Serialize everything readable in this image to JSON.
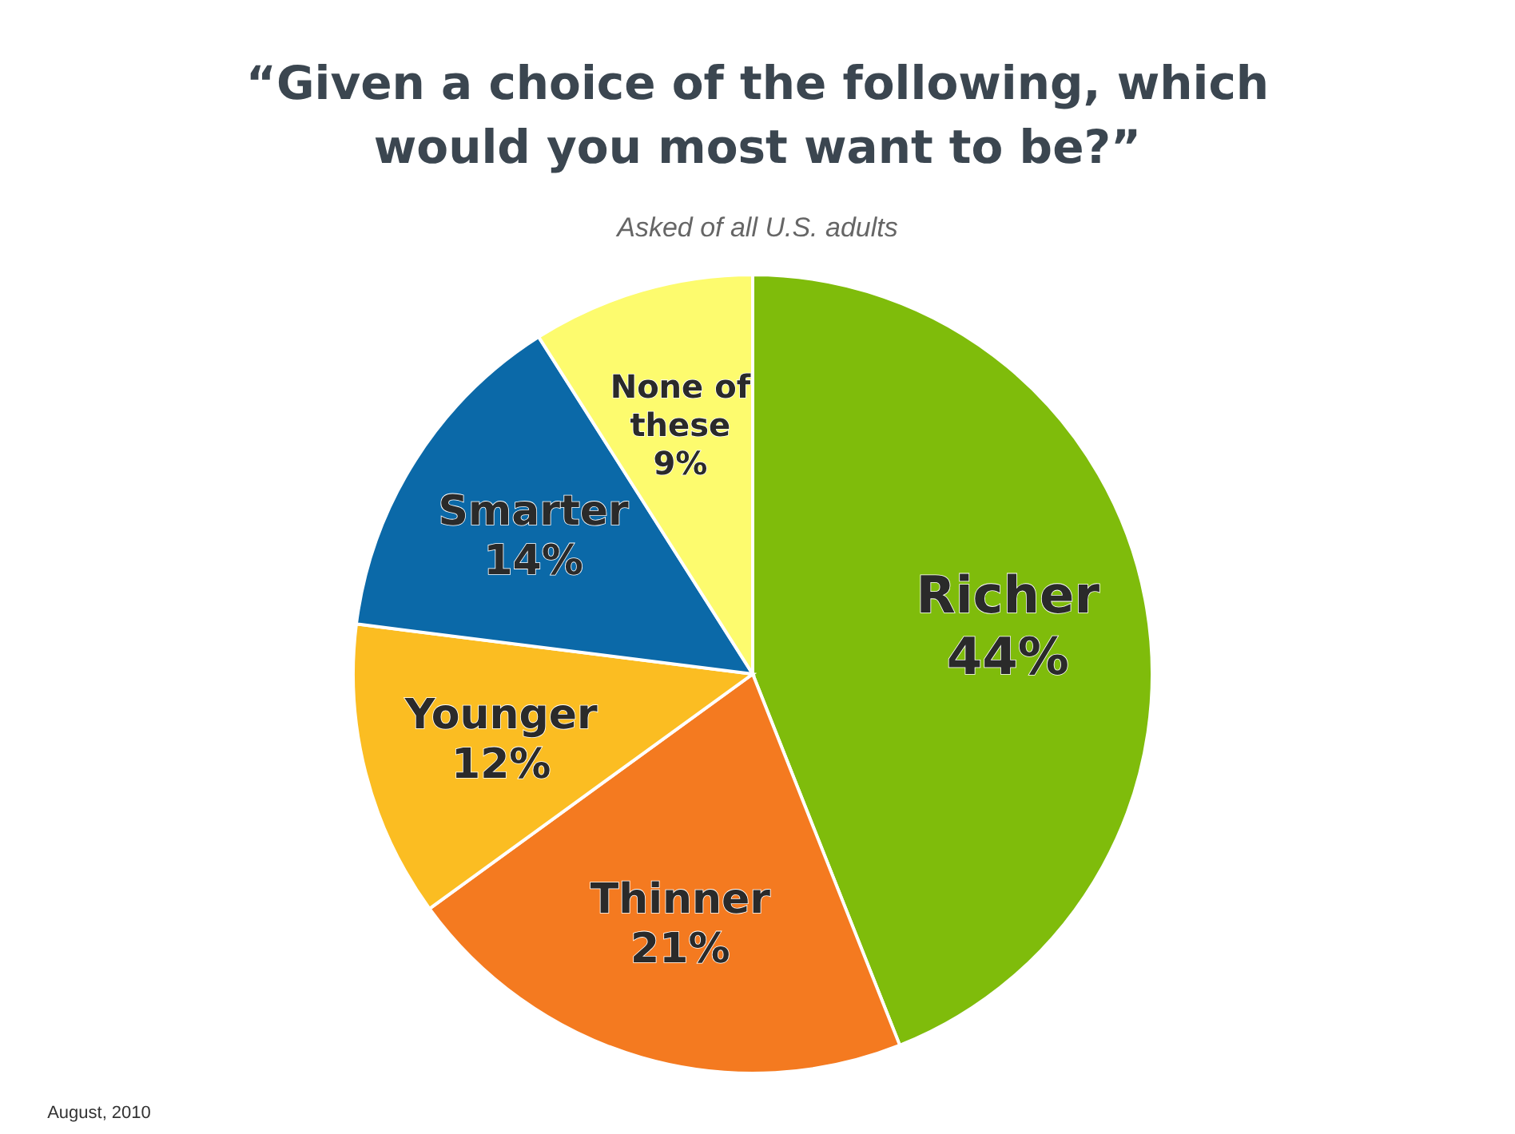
{
  "chart_data": {
    "type": "pie",
    "title": "“Given a choice of the following, which would you most want to be?”",
    "subtitle": "Asked of all U.S. adults",
    "categories": [
      "Richer",
      "Thinner",
      "Younger",
      "Smarter",
      "None of these"
    ],
    "values": [
      44,
      21,
      12,
      14,
      9
    ],
    "colors": [
      "#7fbc0b",
      "#f47a20",
      "#fbbd22",
      "#0b69a8",
      "#fdfb6e"
    ],
    "value_labels": [
      "44%",
      "21%",
      "12%",
      "14%",
      "9%"
    ],
    "annotations": [
      "August, 2010"
    ]
  }
}
